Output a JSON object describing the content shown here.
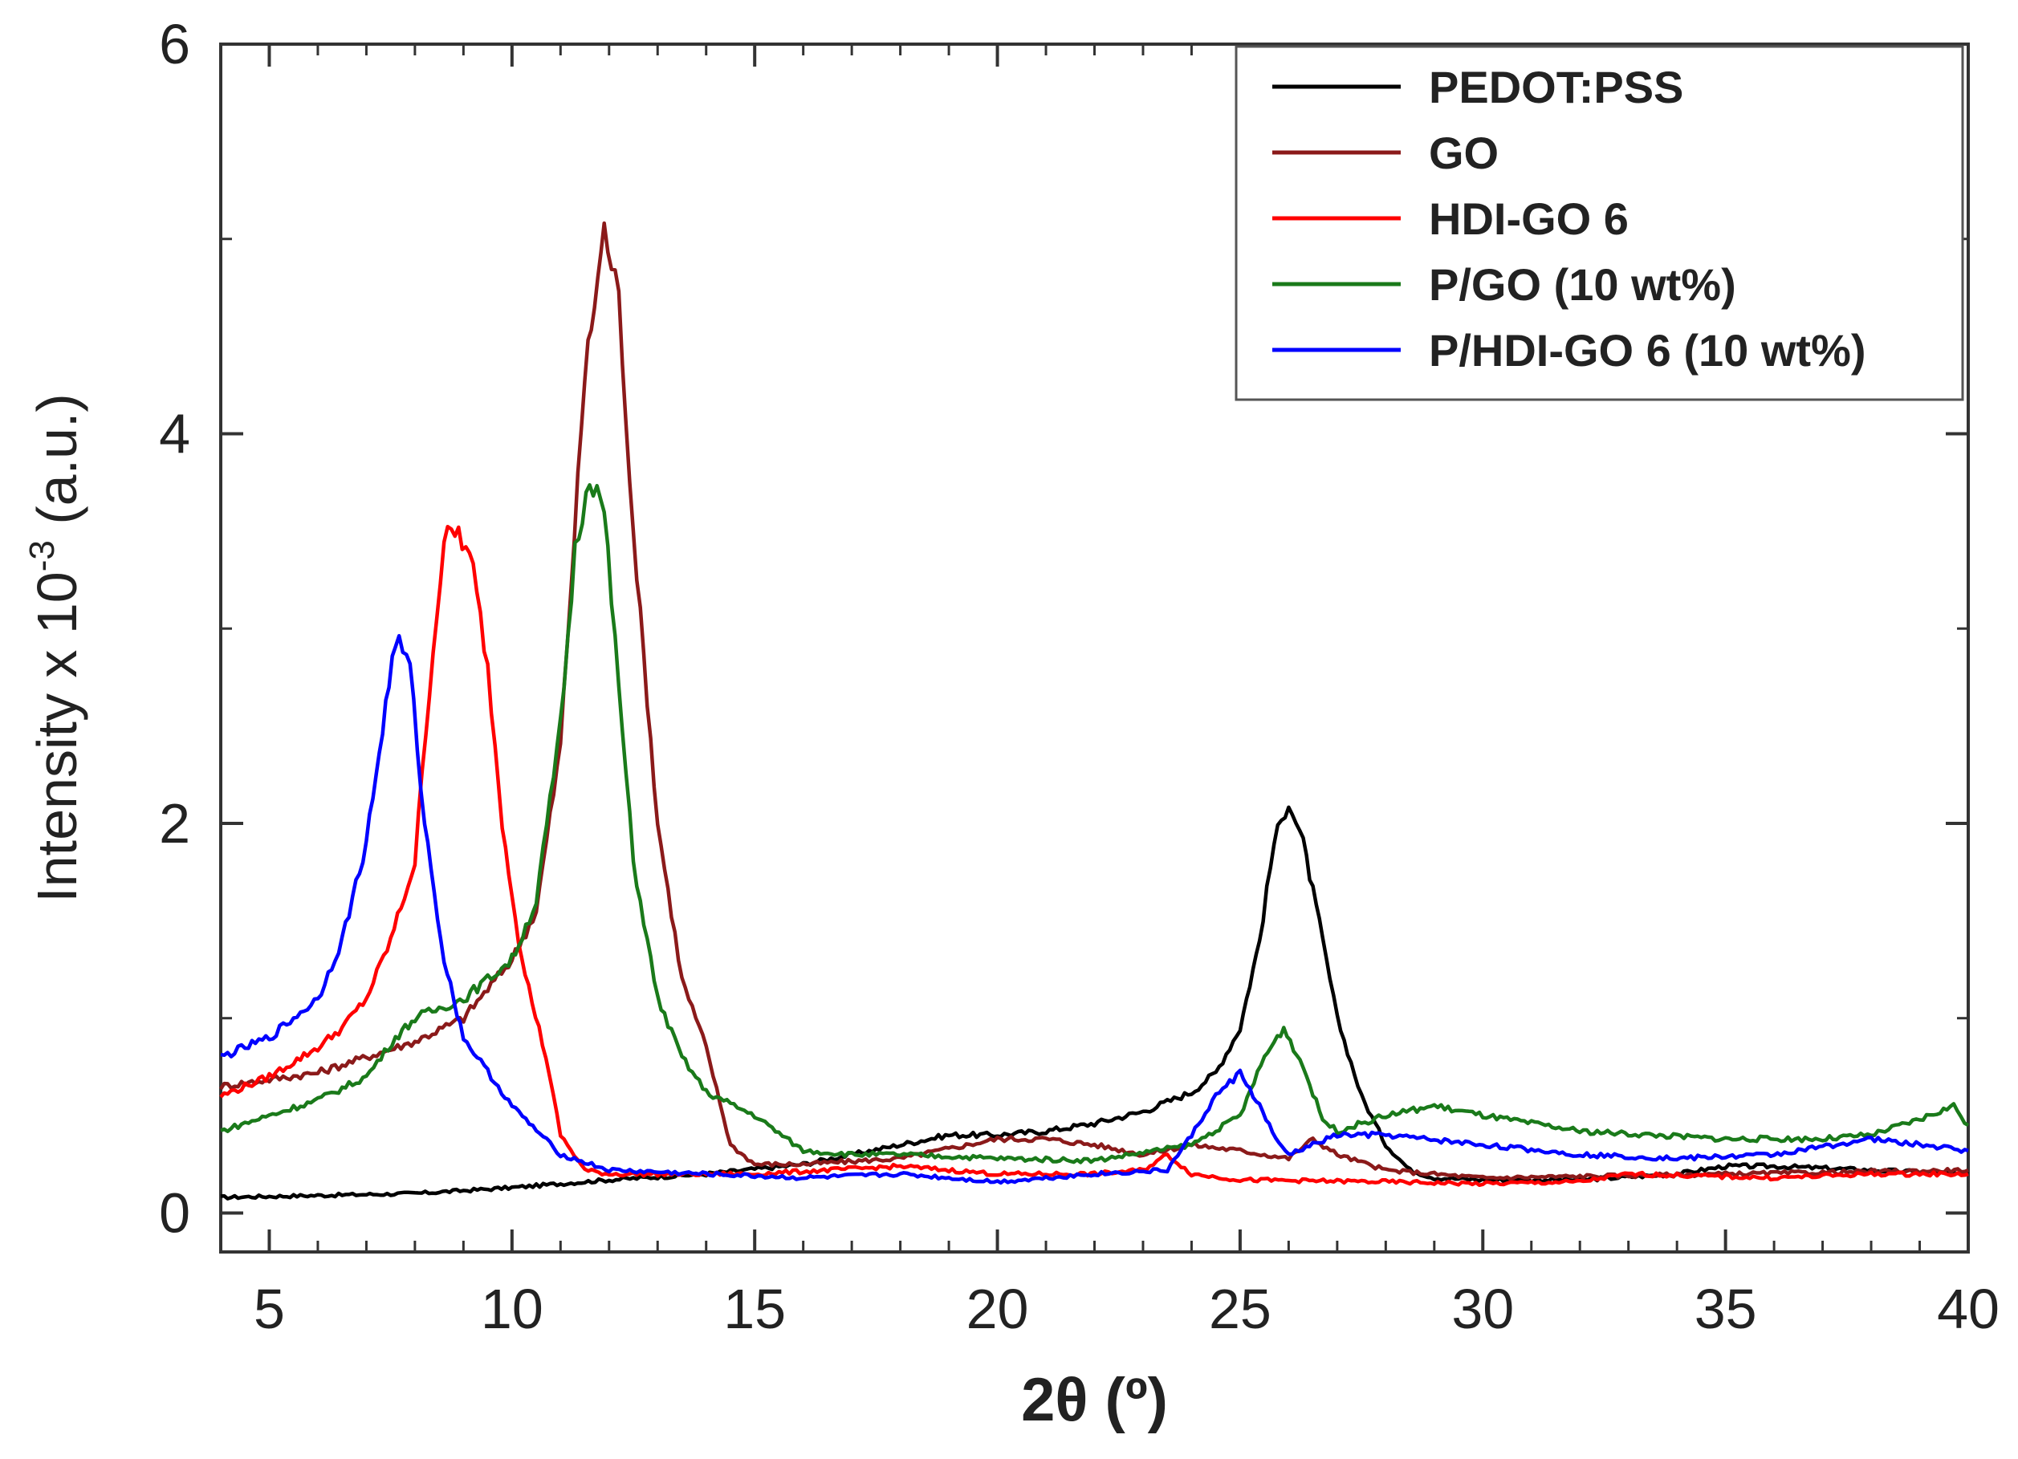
{
  "chart_data": {
    "type": "line",
    "xlabel": "2θ  (º)",
    "ylabel": "Intensity x 10",
    "ylabel_exponent": "-3",
    "ylabel_unit": " (a.u.)",
    "xlim": [
      4,
      40
    ],
    "ylim": [
      -0.2,
      6
    ],
    "xticks": [
      5,
      10,
      15,
      20,
      25,
      30,
      35,
      40
    ],
    "xtick_labels": [
      "5",
      "10",
      "15",
      "20",
      "25",
      "30",
      "35",
      "40"
    ],
    "yticks": [
      0,
      2,
      4,
      6
    ],
    "ytick_labels": [
      "0",
      "2",
      "4",
      "6"
    ],
    "legend_position": "top-right",
    "series": [
      {
        "name": "PEDOT:PSS",
        "color": "#000000",
        "points": [
          [
            4,
            0.08
          ],
          [
            6,
            0.09
          ],
          [
            8,
            0.1
          ],
          [
            10,
            0.13
          ],
          [
            12,
            0.17
          ],
          [
            14,
            0.2
          ],
          [
            16,
            0.25
          ],
          [
            18,
            0.35
          ],
          [
            19,
            0.4
          ],
          [
            20,
            0.4
          ],
          [
            21,
            0.42
          ],
          [
            22,
            0.46
          ],
          [
            23,
            0.52
          ],
          [
            24,
            0.62
          ],
          [
            24.5,
            0.72
          ],
          [
            25,
            0.95
          ],
          [
            25.4,
            1.4
          ],
          [
            25.7,
            1.9
          ],
          [
            26,
            2.12
          ],
          [
            26.3,
            1.9
          ],
          [
            26.7,
            1.4
          ],
          [
            27,
            1.0
          ],
          [
            27.5,
            0.6
          ],
          [
            28,
            0.35
          ],
          [
            28.5,
            0.22
          ],
          [
            29,
            0.18
          ],
          [
            30,
            0.17
          ],
          [
            32,
            0.17
          ],
          [
            34,
            0.2
          ],
          [
            35,
            0.24
          ],
          [
            36,
            0.24
          ],
          [
            38,
            0.22
          ],
          [
            40,
            0.2
          ]
        ]
      },
      {
        "name": "GO",
        "color": "#8b1a1a",
        "points": [
          [
            4,
            0.65
          ],
          [
            6,
            0.72
          ],
          [
            8,
            0.88
          ],
          [
            9,
            1.0
          ],
          [
            10,
            1.3
          ],
          [
            10.5,
            1.55
          ],
          [
            11,
            2.4
          ],
          [
            11.5,
            4.3
          ],
          [
            11.9,
            5.05
          ],
          [
            12.2,
            4.7
          ],
          [
            12.5,
            3.5
          ],
          [
            13,
            2.0
          ],
          [
            13.5,
            1.2
          ],
          [
            14,
            0.85
          ],
          [
            14.5,
            0.35
          ],
          [
            15,
            0.25
          ],
          [
            16,
            0.25
          ],
          [
            18,
            0.28
          ],
          [
            20,
            0.38
          ],
          [
            21,
            0.38
          ],
          [
            22,
            0.35
          ],
          [
            23,
            0.3
          ],
          [
            24,
            0.35
          ],
          [
            25,
            0.32
          ],
          [
            26,
            0.28
          ],
          [
            26.5,
            0.38
          ],
          [
            27,
            0.3
          ],
          [
            28,
            0.22
          ],
          [
            30,
            0.18
          ],
          [
            35,
            0.2
          ],
          [
            40,
            0.22
          ]
        ]
      },
      {
        "name": "HDI-GO 6",
        "color": "#ff0000",
        "points": [
          [
            4,
            0.6
          ],
          [
            5,
            0.7
          ],
          [
            6,
            0.85
          ],
          [
            6.5,
            0.95
          ],
          [
            7,
            1.1
          ],
          [
            7.5,
            1.4
          ],
          [
            8,
            1.8
          ],
          [
            8.3,
            2.7
          ],
          [
            8.6,
            3.45
          ],
          [
            8.9,
            3.5
          ],
          [
            9.2,
            3.3
          ],
          [
            9.5,
            2.8
          ],
          [
            9.8,
            2.0
          ],
          [
            10.2,
            1.3
          ],
          [
            10.7,
            0.8
          ],
          [
            11,
            0.4
          ],
          [
            11.5,
            0.22
          ],
          [
            12,
            0.2
          ],
          [
            15,
            0.2
          ],
          [
            18,
            0.24
          ],
          [
            20,
            0.2
          ],
          [
            22,
            0.2
          ],
          [
            23,
            0.22
          ],
          [
            23.5,
            0.3
          ],
          [
            24,
            0.2
          ],
          [
            25,
            0.17
          ],
          [
            28,
            0.16
          ],
          [
            30,
            0.15
          ],
          [
            32,
            0.16
          ],
          [
            33,
            0.2
          ],
          [
            36,
            0.18
          ],
          [
            38,
            0.2
          ],
          [
            40,
            0.2
          ]
        ]
      },
      {
        "name": "P/GO (10 wt%)",
        "color": "#1a7a1a",
        "points": [
          [
            4,
            0.42
          ],
          [
            5,
            0.5
          ],
          [
            6,
            0.58
          ],
          [
            7,
            0.7
          ],
          [
            7.6,
            0.9
          ],
          [
            8,
            1.0
          ],
          [
            9,
            1.1
          ],
          [
            10,
            1.3
          ],
          [
            10.5,
            1.6
          ],
          [
            11,
            2.5
          ],
          [
            11.3,
            3.4
          ],
          [
            11.6,
            3.8
          ],
          [
            11.9,
            3.6
          ],
          [
            12.2,
            2.7
          ],
          [
            12.5,
            1.8
          ],
          [
            13,
            1.1
          ],
          [
            13.5,
            0.8
          ],
          [
            14,
            0.62
          ],
          [
            15,
            0.5
          ],
          [
            16,
            0.32
          ],
          [
            17,
            0.3
          ],
          [
            18,
            0.3
          ],
          [
            20,
            0.28
          ],
          [
            22,
            0.27
          ],
          [
            24,
            0.35
          ],
          [
            25,
            0.5
          ],
          [
            25.5,
            0.8
          ],
          [
            25.9,
            0.95
          ],
          [
            26.3,
            0.75
          ],
          [
            26.7,
            0.48
          ],
          [
            27,
            0.42
          ],
          [
            28,
            0.5
          ],
          [
            29,
            0.55
          ],
          [
            30,
            0.5
          ],
          [
            32,
            0.42
          ],
          [
            35,
            0.38
          ],
          [
            37,
            0.38
          ],
          [
            38,
            0.4
          ],
          [
            39,
            0.48
          ],
          [
            39.7,
            0.55
          ],
          [
            40,
            0.45
          ]
        ]
      },
      {
        "name": "P/HDI-GO 6 (10 wt%)",
        "color": "#0000ff",
        "points": [
          [
            4,
            0.8
          ],
          [
            5,
            0.9
          ],
          [
            6,
            1.1
          ],
          [
            6.5,
            1.4
          ],
          [
            7,
            1.9
          ],
          [
            7.4,
            2.6
          ],
          [
            7.6,
            2.95
          ],
          [
            7.9,
            2.8
          ],
          [
            8.2,
            2.0
          ],
          [
            8.6,
            1.3
          ],
          [
            9,
            0.9
          ],
          [
            10,
            0.55
          ],
          [
            11,
            0.3
          ],
          [
            12,
            0.22
          ],
          [
            14,
            0.2
          ],
          [
            16,
            0.18
          ],
          [
            18,
            0.2
          ],
          [
            20,
            0.16
          ],
          [
            22,
            0.2
          ],
          [
            23.5,
            0.22
          ],
          [
            24,
            0.4
          ],
          [
            24.5,
            0.6
          ],
          [
            25,
            0.72
          ],
          [
            25.4,
            0.55
          ],
          [
            25.8,
            0.35
          ],
          [
            26,
            0.3
          ],
          [
            27,
            0.4
          ],
          [
            28,
            0.4
          ],
          [
            30,
            0.35
          ],
          [
            32,
            0.3
          ],
          [
            34,
            0.28
          ],
          [
            36,
            0.3
          ],
          [
            38,
            0.38
          ],
          [
            39,
            0.35
          ],
          [
            40,
            0.32
          ]
        ]
      }
    ]
  }
}
